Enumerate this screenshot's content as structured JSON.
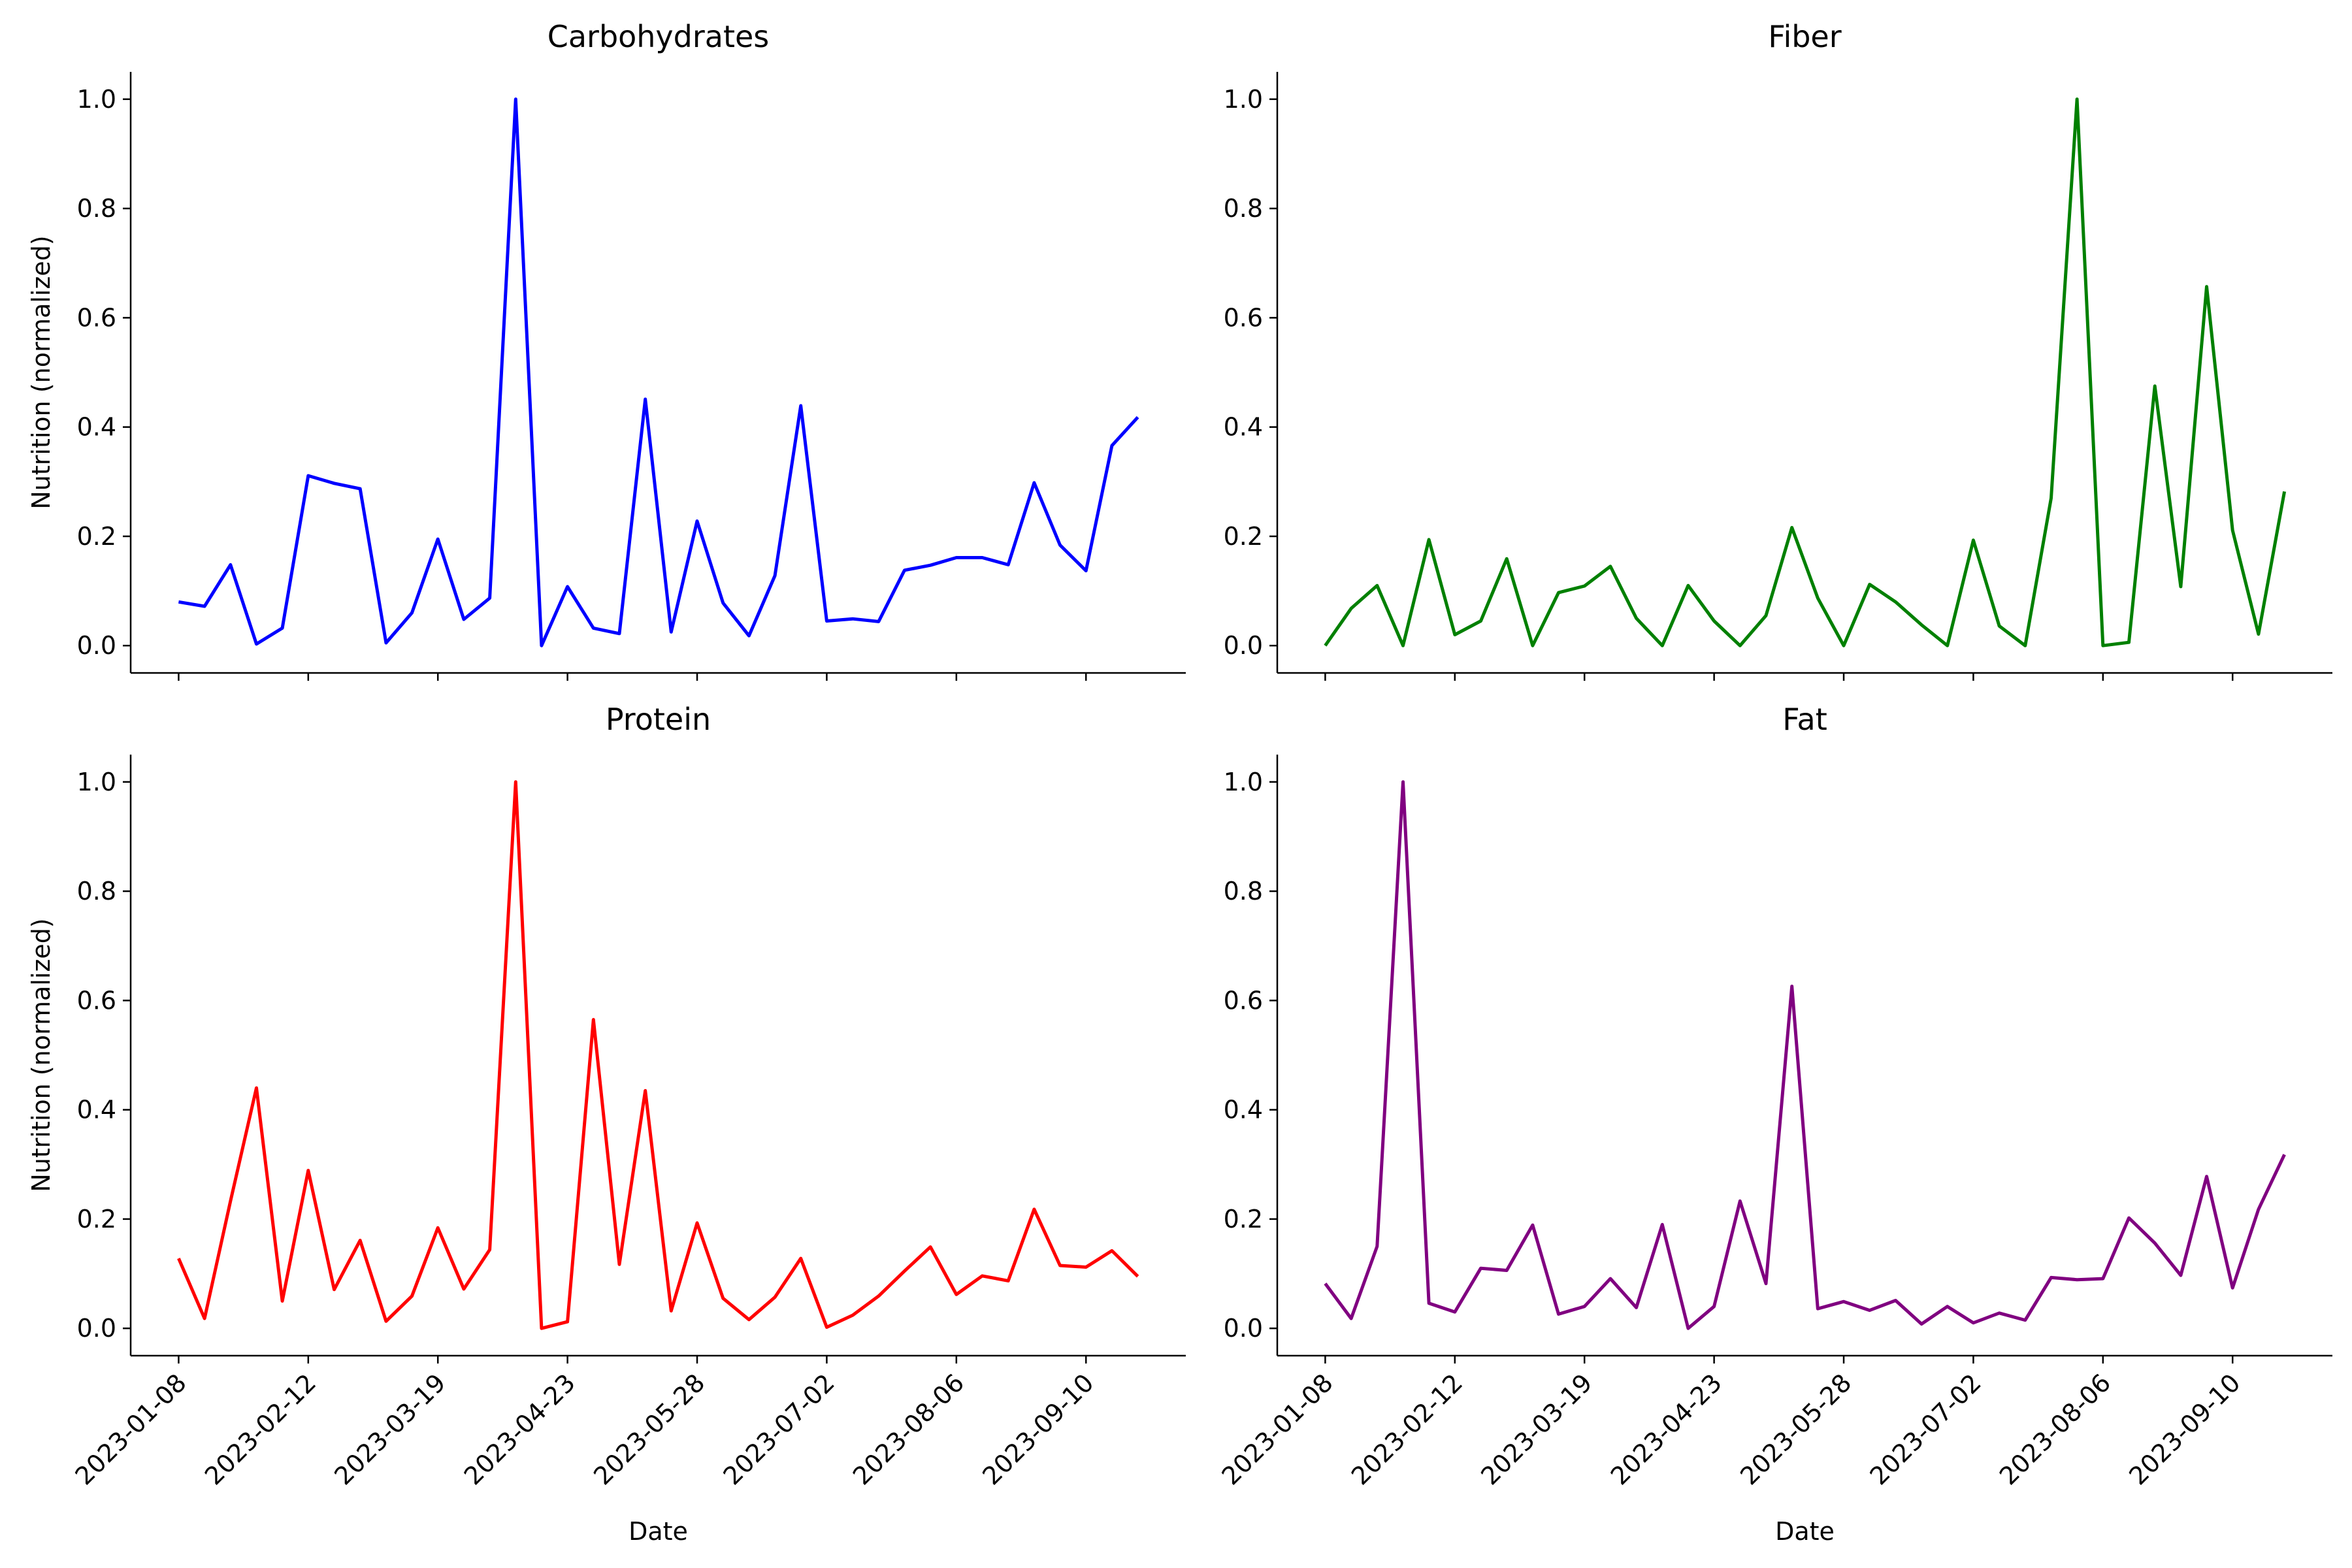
{
  "chart_data": [
    {
      "type": "line",
      "title": "Carbohydrates",
      "xlabel": "",
      "ylabel": "Nutrition (normalized)",
      "color": "#0000ff",
      "ylim": [
        -0.05,
        1.05
      ],
      "yticks": [
        "0.0",
        "0.2",
        "0.4",
        "0.6",
        "0.8",
        "1.0"
      ],
      "xticks": [
        "2023-01-08",
        "2023-02-12",
        "2023-03-19",
        "2023-04-23",
        "2023-05-28",
        "2023-07-02",
        "2023-08-06",
        "2023-09-10"
      ],
      "x_start": "2023-01-08",
      "x_step_days": 7,
      "values": [
        0.08,
        0.072,
        0.148,
        0.003,
        0.032,
        0.311,
        0.297,
        0.287,
        0.005,
        0.06,
        0.195,
        0.048,
        0.087,
        1.0,
        0.0,
        0.108,
        0.032,
        0.022,
        0.451,
        0.025,
        0.228,
        0.078,
        0.018,
        0.128,
        0.439,
        0.045,
        0.049,
        0.044,
        0.138,
        0.147,
        0.161,
        0.161,
        0.148,
        0.298,
        0.184,
        0.137,
        0.366,
        0.418
      ]
    },
    {
      "type": "line",
      "title": "Fiber",
      "xlabel": "",
      "ylabel": "",
      "color": "#008000",
      "ylim": [
        -0.05,
        1.05
      ],
      "yticks": [
        "0.0",
        "0.2",
        "0.4",
        "0.6",
        "0.8",
        "1.0"
      ],
      "xticks": [
        "2023-01-08",
        "2023-02-12",
        "2023-03-19",
        "2023-04-23",
        "2023-05-28",
        "2023-07-02",
        "2023-08-06",
        "2023-09-10"
      ],
      "x_start": "2023-01-08",
      "x_step_days": 7,
      "values": [
        0.0,
        0.068,
        0.11,
        0.0,
        0.194,
        0.02,
        0.045,
        0.159,
        0.0,
        0.097,
        0.109,
        0.145,
        0.05,
        0.0,
        0.11,
        0.045,
        0.0,
        0.055,
        0.216,
        0.087,
        0.0,
        0.112,
        0.08,
        0.038,
        0.0,
        0.193,
        0.036,
        0.0,
        0.27,
        1.0,
        0.0,
        0.006,
        0.475,
        0.108,
        0.657,
        0.211,
        0.021,
        0.282
      ]
    },
    {
      "type": "line",
      "title": "Protein",
      "xlabel": "Date",
      "ylabel": "Nutrition (normalized)",
      "color": "#ff0000",
      "ylim": [
        -0.05,
        1.05
      ],
      "yticks": [
        "0.0",
        "0.2",
        "0.4",
        "0.6",
        "0.8",
        "1.0"
      ],
      "xticks": [
        "2023-01-08",
        "2023-02-12",
        "2023-03-19",
        "2023-04-23",
        "2023-05-28",
        "2023-07-02",
        "2023-08-06",
        "2023-09-10"
      ],
      "x_start": "2023-01-08",
      "x_step_days": 7,
      "values": [
        0.128,
        0.018,
        0.233,
        0.44,
        0.05,
        0.289,
        0.071,
        0.161,
        0.013,
        0.059,
        0.184,
        0.072,
        0.144,
        1.0,
        0.0,
        0.012,
        0.565,
        0.117,
        0.435,
        0.032,
        0.193,
        0.055,
        0.016,
        0.057,
        0.128,
        0.002,
        0.024,
        0.059,
        0.105,
        0.149,
        0.062,
        0.096,
        0.087,
        0.218,
        0.115,
        0.112,
        0.142,
        0.095
      ]
    },
    {
      "type": "line",
      "title": "Fat",
      "xlabel": "Date",
      "ylabel": "",
      "color": "#800080",
      "ylim": [
        -0.05,
        1.05
      ],
      "yticks": [
        "0.0",
        "0.2",
        "0.4",
        "0.6",
        "0.8",
        "1.0"
      ],
      "xticks": [
        "2023-01-08",
        "2023-02-12",
        "2023-03-19",
        "2023-04-23",
        "2023-05-28",
        "2023-07-02",
        "2023-08-06",
        "2023-09-10"
      ],
      "x_start": "2023-01-08",
      "x_step_days": 7,
      "values": [
        0.082,
        0.018,
        0.15,
        1.0,
        0.046,
        0.03,
        0.11,
        0.106,
        0.189,
        0.026,
        0.04,
        0.091,
        0.038,
        0.19,
        0.0,
        0.04,
        0.233,
        0.082,
        0.626,
        0.036,
        0.049,
        0.033,
        0.051,
        0.008,
        0.04,
        0.01,
        0.028,
        0.015,
        0.093,
        0.089,
        0.091,
        0.202,
        0.156,
        0.097,
        0.278,
        0.074,
        0.218,
        0.318
      ]
    }
  ]
}
